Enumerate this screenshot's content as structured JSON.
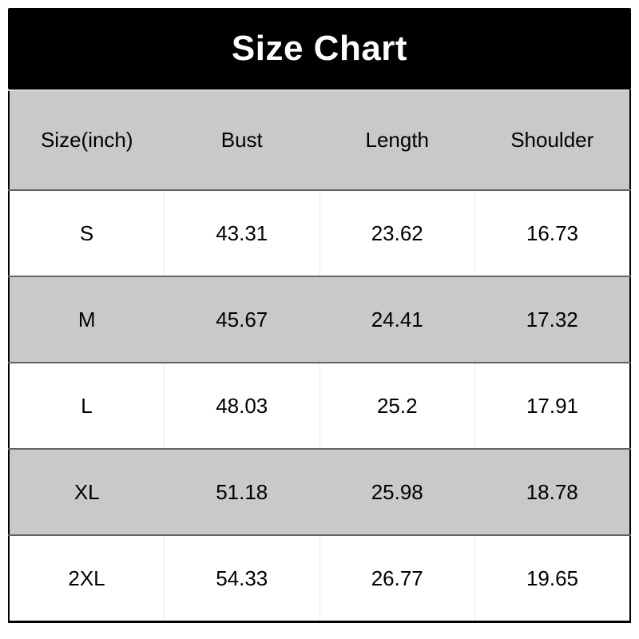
{
  "title": "Size Chart",
  "colors": {
    "title_bar_bg": "#000000",
    "title_text": "#ffffff",
    "row_alt_bg": "#c9c9c9",
    "row_bg": "#ffffff",
    "row_divider": "#646464",
    "outer_border": "#000000",
    "column_divider": "#e9e9e9",
    "cell_text": "#000000"
  },
  "chart_data": {
    "type": "table",
    "title": "Size Chart",
    "unit": "inch",
    "columns": [
      "Size(inch)",
      "Bust",
      "Length",
      "Shoulder"
    ],
    "rows": [
      [
        "S",
        "43.31",
        "23.62",
        "16.73"
      ],
      [
        "M",
        "45.67",
        "24.41",
        "17.32"
      ],
      [
        "L",
        "48.03",
        "25.2",
        "17.91"
      ],
      [
        "XL",
        "51.18",
        "25.98",
        "18.78"
      ],
      [
        "2XL",
        "54.33",
        "26.77",
        "19.65"
      ]
    ]
  }
}
